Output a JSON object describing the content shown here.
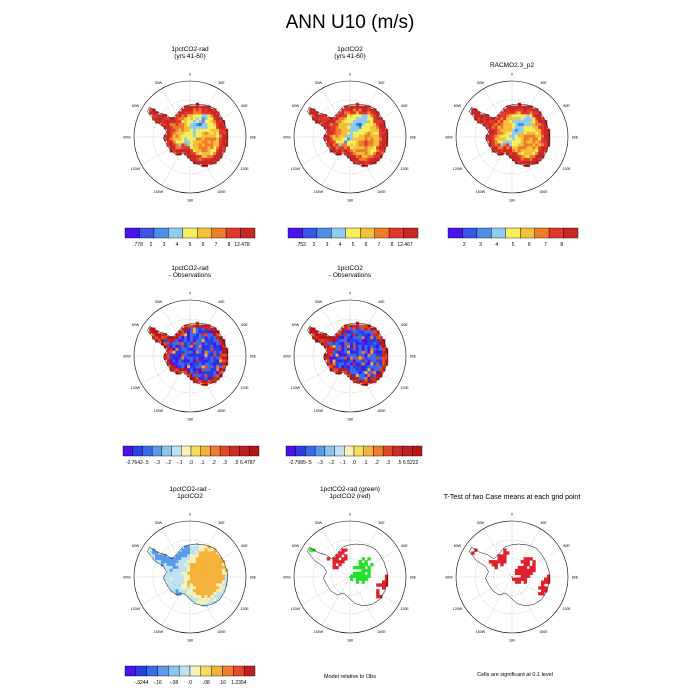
{
  "title": "ANN U10 (m/s)",
  "colors": {
    "seq": [
      "#4b12ee",
      "#3a55e8",
      "#4a8fe6",
      "#8fcdf0",
      "#f5ef5d",
      "#f6bf39",
      "#ee7d2b",
      "#e0382a",
      "#c82728"
    ],
    "div": [
      "#4b12ee",
      "#2c3fe0",
      "#3a6bea",
      "#5a9be9",
      "#8cc6ee",
      "#bfe2f3",
      "#f6f1b8",
      "#f4dd5a",
      "#f5b23b",
      "#ef7d2b",
      "#e14a27",
      "#d02a24",
      "#c01e22",
      "#b51419"
    ],
    "green": "#22e22a",
    "red": "#e0202a"
  },
  "panels": [
    {
      "id": "p1",
      "title": [
        "1pctCO2-rad",
        "(yrs 41-60)"
      ],
      "kind": "seq",
      "cbar": {
        "labels": [
          ".778",
          "2",
          "3",
          "4",
          "5",
          "6",
          "7",
          "8",
          "12.478"
        ]
      }
    },
    {
      "id": "p2",
      "title": [
        "1pctCO2",
        "(yrs 41-60)"
      ],
      "kind": "seq",
      "cbar": {
        "labels": [
          ".752",
          "2",
          "3",
          "4",
          "5",
          "6",
          "7",
          "8",
          "12.467"
        ]
      }
    },
    {
      "id": "p3",
      "title": [
        "RACMO2.3_p2"
      ],
      "kind": "seq",
      "cbar": {
        "labels": [
          "2",
          "3",
          "4",
          "5",
          "6",
          "7",
          "8"
        ]
      }
    },
    {
      "id": "p4",
      "title": [
        "1pctCO2-rad",
        "- Observations"
      ],
      "kind": "div",
      "cbar": {
        "labels": [
          "-2.7642",
          "-.5",
          "-.3",
          "-.2",
          "-.1",
          ".0",
          ".1",
          ".2",
          ".3",
          ".5",
          "6.4787"
        ]
      }
    },
    {
      "id": "p5",
      "title": [
        "1pctCO2",
        "- Observations"
      ],
      "kind": "div",
      "cbar": {
        "labels": [
          "-2.7985",
          "-.5",
          "-.3",
          "-.2",
          "-.1",
          ".0",
          ".1",
          ".2",
          ".3",
          ".5",
          "6.5222"
        ]
      }
    },
    {
      "id": "p7",
      "title": [
        "1pctCO2-rad -",
        "1pctCO2"
      ],
      "kind": "diff",
      "cbar": {
        "labels": [
          "-.3244",
          "-.16",
          "-.08",
          ".0",
          ".08",
          ".16",
          "1.2354"
        ]
      }
    },
    {
      "id": "p8",
      "title": [
        "1pctCO2-rad (green)",
        "1pctCO2 (red)"
      ],
      "kind": "sig2"
    },
    {
      "id": "p9",
      "title": [
        "T-Test of two Case means at each grid point"
      ],
      "kind": "sig1"
    }
  ],
  "lon_labels": [
    "0",
    "30E",
    "60E",
    "90E",
    "120E",
    "150E",
    "180",
    "150W",
    "120W",
    "90W",
    "60W",
    "30W"
  ],
  "notes": {
    "model_relative": "Model relative to Obs",
    "cells_significant": "Cells are significant at 0.1 level"
  }
}
